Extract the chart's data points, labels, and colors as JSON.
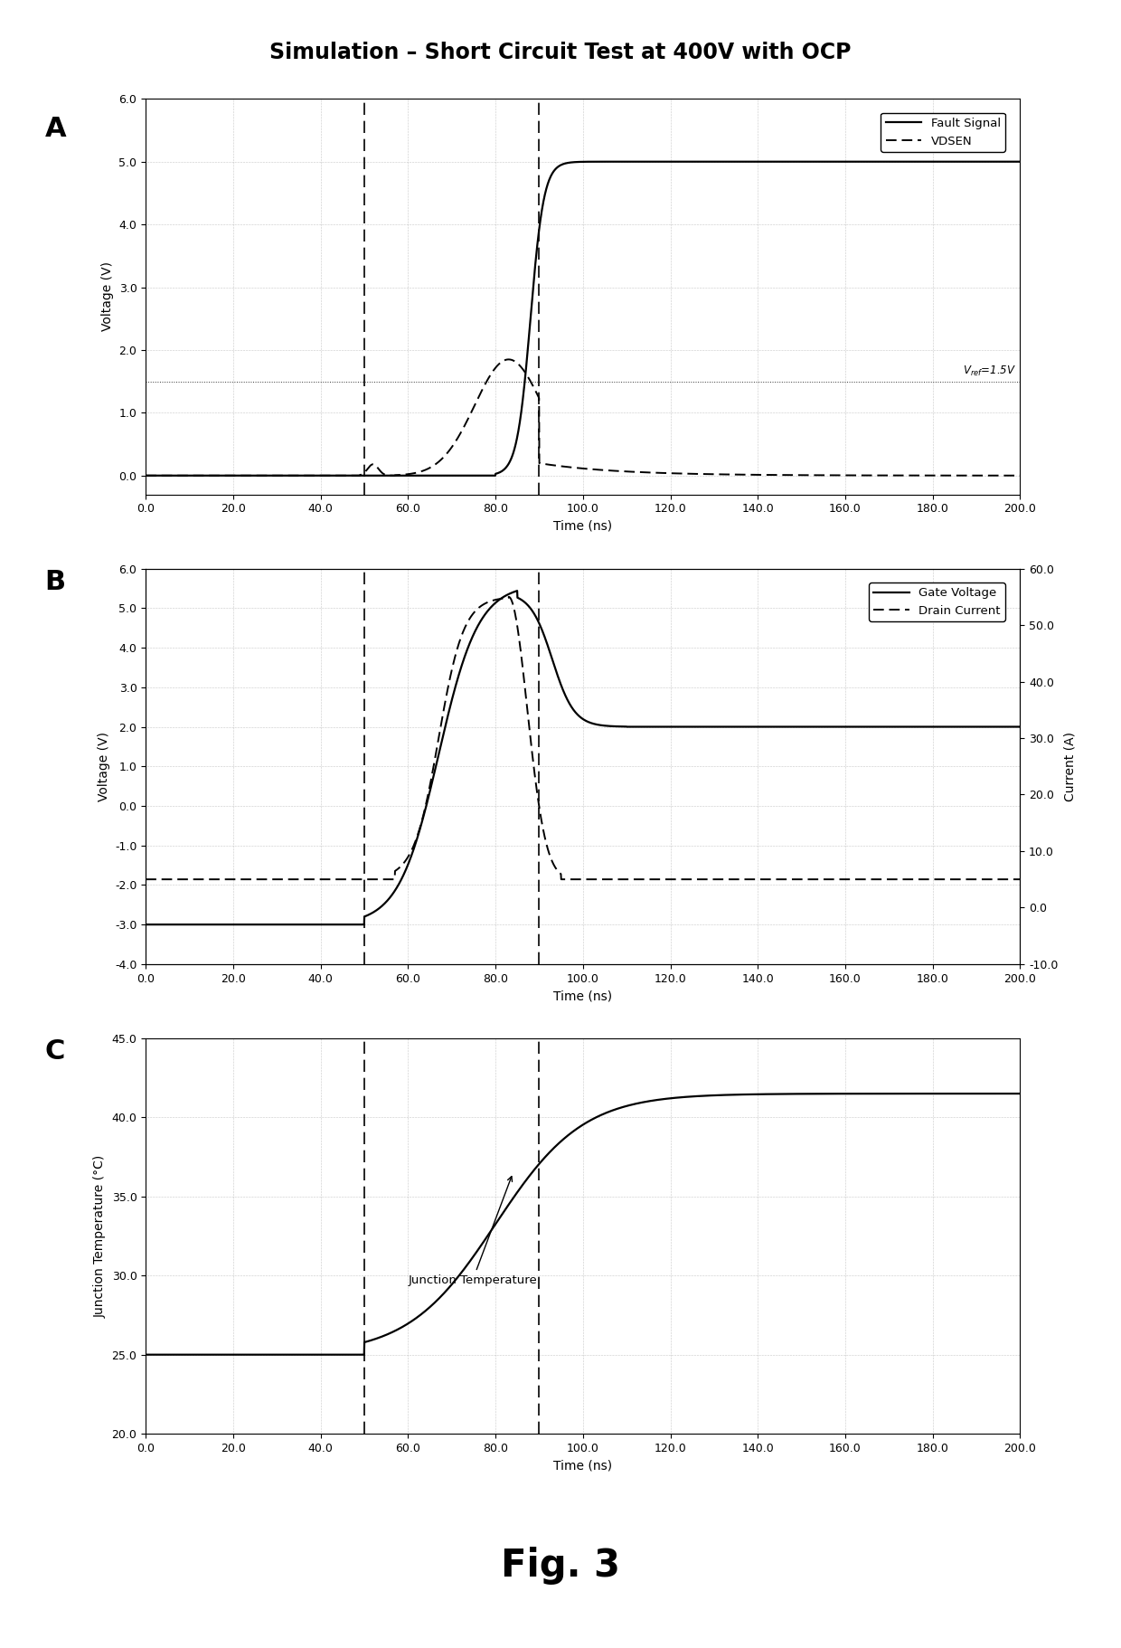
{
  "title": "Simulation – Short Circuit Test at 400V with OCP",
  "fig_label": "Fig. 3",
  "background_color": "#ffffff",
  "grid_color": "#999999",
  "vline1": 50,
  "vline2": 90,
  "panel_A": {
    "label": "A",
    "ylabel": "Voltage (V)",
    "xlabel": "Time (ns)",
    "xlim": [
      0,
      200
    ],
    "ylim": [
      -0.3,
      6.0
    ],
    "yticks": [
      0.0,
      1.0,
      2.0,
      3.0,
      4.0,
      5.0,
      6.0
    ],
    "xticks": [
      0.0,
      20.0,
      40.0,
      60.0,
      80.0,
      100.0,
      120.0,
      140.0,
      160.0,
      180.0,
      200.0
    ],
    "vref_label": "Vref=1.5V",
    "vref_y": 1.5,
    "legend": [
      "Fault Signal",
      "VDSEN"
    ]
  },
  "panel_B": {
    "label": "B",
    "ylabel": "Voltage (V)",
    "ylabel2": "Current (A)",
    "xlabel": "Time (ns)",
    "xlim": [
      0,
      200
    ],
    "ylim": [
      -4.0,
      6.0
    ],
    "ylim2": [
      -10.0,
      60.0
    ],
    "yticks": [
      -4.0,
      -3.0,
      -2.0,
      -1.0,
      0.0,
      1.0,
      2.0,
      3.0,
      4.0,
      5.0,
      6.0
    ],
    "yticks2": [
      -10.0,
      0.0,
      10.0,
      20.0,
      30.0,
      40.0,
      50.0,
      60.0
    ],
    "xticks": [
      0.0,
      20.0,
      40.0,
      60.0,
      80.0,
      100.0,
      120.0,
      140.0,
      160.0,
      180.0,
      200.0
    ],
    "legend": [
      "Gate Voltage",
      "Drain Current"
    ]
  },
  "panel_C": {
    "label": "C",
    "ylabel": "Junction Temperature (°C)",
    "xlabel": "Time (ns)",
    "xlim": [
      0,
      200
    ],
    "ylim": [
      20.0,
      45.0
    ],
    "yticks": [
      20.0,
      25.0,
      30.0,
      35.0,
      40.0,
      45.0
    ],
    "xticks": [
      0.0,
      20.0,
      40.0,
      60.0,
      80.0,
      100.0,
      120.0,
      140.0,
      160.0,
      180.0,
      200.0
    ],
    "annotation": "Junction Temperature"
  }
}
